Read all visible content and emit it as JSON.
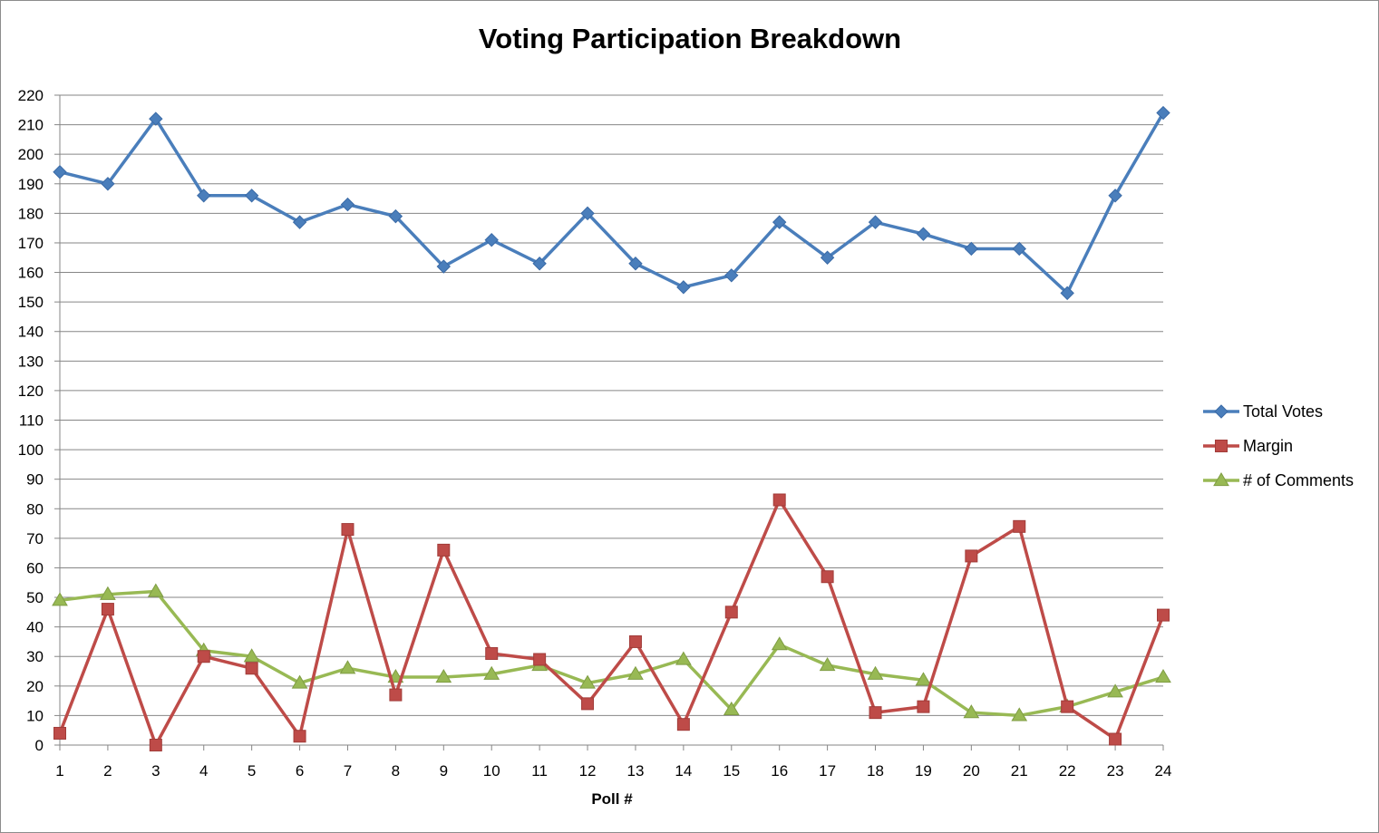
{
  "chart_data": {
    "type": "line",
    "title": "Voting Participation Breakdown",
    "xlabel": "Poll #",
    "ylabel": "",
    "ylim": [
      0,
      220
    ],
    "ytick_step": 10,
    "grid": true,
    "legend_position": "right",
    "categories": [
      "1",
      "2",
      "3",
      "4",
      "5",
      "6",
      "7",
      "8",
      "9",
      "10",
      "11",
      "12",
      "13",
      "14",
      "15",
      "16",
      "17",
      "18",
      "19",
      "20",
      "21",
      "22",
      "23",
      "24"
    ],
    "series": [
      {
        "name": "Total Votes",
        "color": "#4a7ebb",
        "marker": "diamond",
        "values": [
          194,
          190,
          212,
          186,
          186,
          177,
          183,
          179,
          162,
          171,
          163,
          180,
          163,
          155,
          159,
          177,
          165,
          177,
          173,
          168,
          168,
          153,
          186,
          214
        ]
      },
      {
        "name": "Margin",
        "color": "#be4b48",
        "marker": "square",
        "values": [
          4,
          46,
          0,
          30,
          26,
          3,
          73,
          17,
          66,
          31,
          29,
          14,
          35,
          7,
          45,
          83,
          57,
          11,
          13,
          64,
          74,
          13,
          2,
          44
        ]
      },
      {
        "name": "# of Comments",
        "color": "#98b954",
        "marker": "triangle",
        "values": [
          49,
          51,
          52,
          32,
          30,
          21,
          26,
          23,
          23,
          24,
          27,
          21,
          24,
          29,
          12,
          34,
          27,
          24,
          22,
          11,
          10,
          13,
          18,
          23
        ]
      }
    ]
  }
}
